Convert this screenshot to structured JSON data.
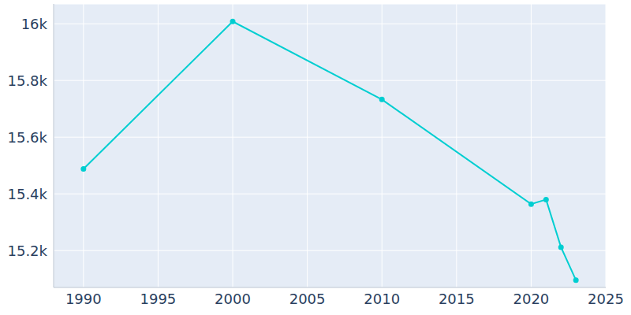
{
  "chart_data": {
    "type": "line",
    "x": [
      1990,
      2000,
      2010,
      2020,
      2021,
      2022,
      2023
    ],
    "values": [
      15488,
      16008,
      15733,
      15364,
      15380,
      15212,
      15096
    ],
    "color": "#00ced1",
    "xlim": [
      1988,
      2025
    ],
    "xticks": [
      1990,
      1995,
      2000,
      2005,
      2010,
      2015,
      2020,
      2025
    ],
    "ylim": [
      15070,
      16070
    ],
    "yticks": [
      {
        "value": 15200,
        "label": "15.2k"
      },
      {
        "value": 15400,
        "label": "15.4k"
      },
      {
        "value": 15600,
        "label": "15.6k"
      },
      {
        "value": 15800,
        "label": "15.8k"
      },
      {
        "value": 16000,
        "label": "16k"
      }
    ],
    "grid": true,
    "marker": "circle"
  }
}
